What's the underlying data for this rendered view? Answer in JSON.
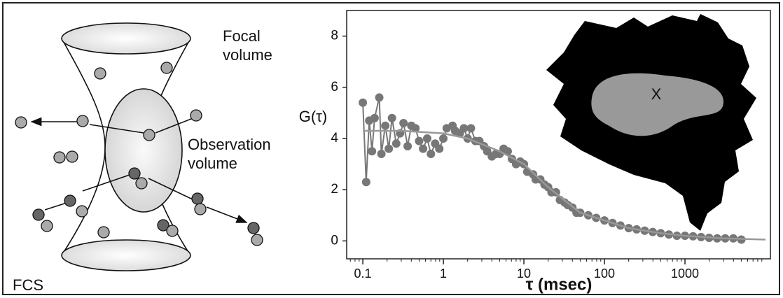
{
  "diagram": {
    "labels": {
      "focal": "Focal volume",
      "observation": "Observation volume",
      "method": "FCS"
    }
  },
  "chart_data": {
    "type": "line",
    "ylabel": "G(τ)",
    "xlabel": "τ (msec)",
    "annotation": "X",
    "xscale": "log",
    "xlim": [
      0.063,
      11500
    ],
    "ylim": [
      -0.7,
      9
    ],
    "xticks": [
      0.1,
      1,
      10,
      100,
      1000
    ],
    "yticks": [
      0,
      2,
      4,
      6,
      8
    ],
    "series": [
      {
        "color": "#777777",
        "markers": true,
        "x": [
          0.1,
          0.11,
          0.12,
          0.13,
          0.14,
          0.16,
          0.17,
          0.19,
          0.21,
          0.23,
          0.26,
          0.29,
          0.32,
          0.36,
          0.4,
          0.45,
          0.5,
          0.56,
          0.63,
          0.7,
          0.79,
          0.89,
          1.0,
          1.1,
          1.3,
          1.4,
          1.6,
          1.8,
          2.0,
          2.2,
          2.5,
          2.8,
          3.2,
          3.5,
          4.0,
          4.5,
          5.0,
          5.6,
          6.3,
          7.1,
          8.0,
          9,
          10,
          11,
          13,
          14,
          16,
          18,
          20,
          22,
          25,
          28,
          32,
          35,
          40,
          45,
          50,
          63,
          79,
          100,
          126,
          158,
          200,
          251,
          316,
          398,
          500,
          631,
          794,
          1000,
          1259,
          1585,
          1995,
          2512,
          3162,
          3981,
          5012
        ],
        "values": [
          5.4,
          2.3,
          4.7,
          3.5,
          4.8,
          5.6,
          3.4,
          4.5,
          3.6,
          4.8,
          3.8,
          4.2,
          4.6,
          3.7,
          4.5,
          4.4,
          3.9,
          3.6,
          4.0,
          3.4,
          3.8,
          3.6,
          4.0,
          4.4,
          4.5,
          4.3,
          4.2,
          4.4,
          4.0,
          4.4,
          3.9,
          3.9,
          3.7,
          3.5,
          3.3,
          3.4,
          3.4,
          3.6,
          3.5,
          3.2,
          3.0,
          3.1,
          3.0,
          2.7,
          2.6,
          2.4,
          2.4,
          2.2,
          2.1,
          1.9,
          1.9,
          1.6,
          1.5,
          1.4,
          1.3,
          1.1,
          1.1,
          1.0,
          0.9,
          0.8,
          0.7,
          0.6,
          0.5,
          0.45,
          0.4,
          0.35,
          0.3,
          0.25,
          0.2,
          0.2,
          0.18,
          0.15,
          0.12,
          0.1,
          0.1,
          0.1,
          0.05
        ]
      },
      {
        "color": "#999999",
        "markers": false,
        "x": [
          0.1,
          0.3,
          1,
          2,
          5,
          10,
          20,
          50,
          100,
          200,
          500,
          1000,
          3000,
          10000
        ],
        "values": [
          4.3,
          4.3,
          4.2,
          4.0,
          3.5,
          3.0,
          2.1,
          1.1,
          0.8,
          0.5,
          0.3,
          0.2,
          0.1,
          0.05
        ]
      }
    ]
  }
}
